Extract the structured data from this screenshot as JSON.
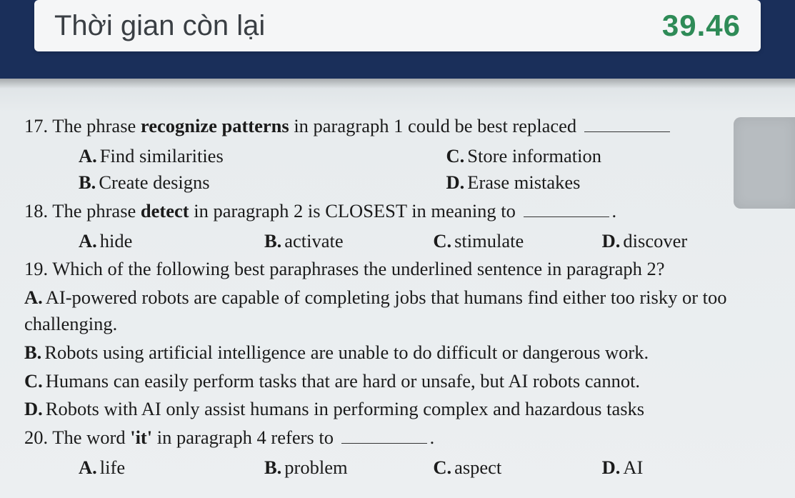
{
  "colors": {
    "banner_bg": "#1a2f5a",
    "card_bg": "#f5f6f7",
    "timer_text": "#2e8b57",
    "sheet_bg": "#e8ecee",
    "text": "#1b1b1b",
    "thumb": "#b7bcc0"
  },
  "typography": {
    "body_fontsize_pt": 20,
    "timer_label_fontsize_pt": 30,
    "timer_value_fontsize_pt": 32,
    "font_family": "Times New Roman"
  },
  "timer": {
    "label": "Thời gian còn lại",
    "value": "39.46"
  },
  "questions": {
    "q17": {
      "number": "17.",
      "stem_pre": "The phrase ",
      "stem_bold": "recognize patterns",
      "stem_post": " in paragraph 1 could be best replaced ",
      "options": {
        "A": {
          "letter": "A.",
          "text": "Find similarities"
        },
        "B": {
          "letter": "B.",
          "text": "Create designs"
        },
        "C": {
          "letter": "C.",
          "text": "Store information"
        },
        "D": {
          "letter": "D.",
          "text": "Erase mistakes"
        }
      }
    },
    "q18": {
      "number": "18.",
      "stem_pre": "The phrase ",
      "stem_bold": "detect",
      "stem_post": " in paragraph 2 is CLOSEST in meaning to ",
      "options": {
        "A": {
          "letter": "A.",
          "text": "hide"
        },
        "B": {
          "letter": "B.",
          "text": "activate"
        },
        "C": {
          "letter": "C.",
          "text": "stimulate"
        },
        "D": {
          "letter": "D.",
          "text": "discover"
        }
      }
    },
    "q19": {
      "number": "19.",
      "stem": "Which of the following best paraphrases the underlined sentence in paragraph 2?",
      "options": {
        "A": {
          "letter": "A.",
          "text": "AI-powered robots are capable of completing jobs that humans find either too risky or too challenging."
        },
        "B": {
          "letter": "B.",
          "text": "Robots using artificial intelligence are unable to do difficult or dangerous work."
        },
        "C": {
          "letter": "C.",
          "text": "Humans can easily perform tasks that are hard or unsafe, but AI robots cannot."
        },
        "D": {
          "letter": "D.",
          "text": "Robots with AI only assist humans in performing complex and hazardous tasks"
        }
      }
    },
    "q20": {
      "number": "20.",
      "stem_pre": "The word ",
      "stem_bold": "'it'",
      "stem_post": " in paragraph 4 refers to ",
      "options": {
        "A": {
          "letter": "A.",
          "text": "life"
        },
        "B": {
          "letter": "B.",
          "text": "problem"
        },
        "C": {
          "letter": "C.",
          "text": "aspect"
        },
        "D": {
          "letter": "D.",
          "text": "AI"
        }
      }
    }
  }
}
